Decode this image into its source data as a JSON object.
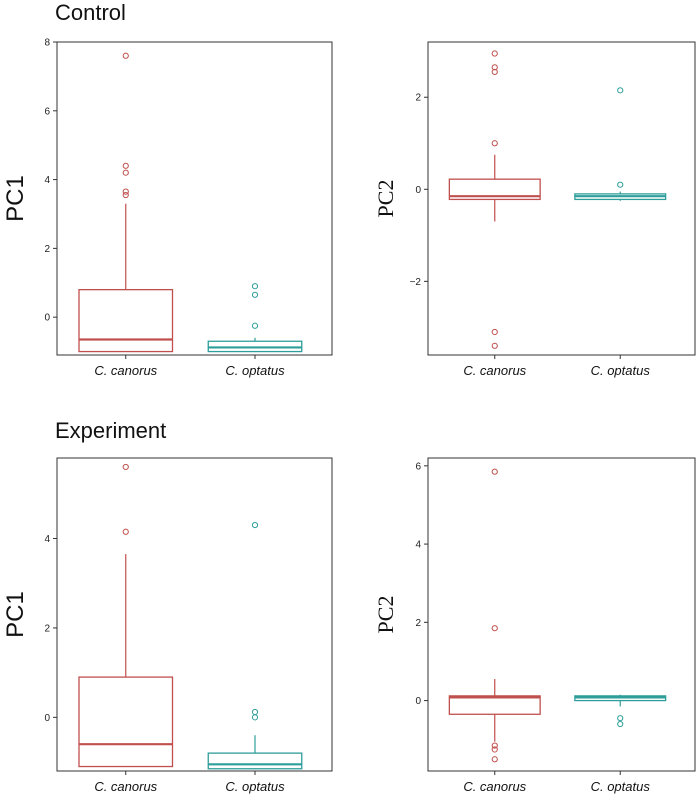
{
  "sections": [
    {
      "title": "Control"
    },
    {
      "title": "Experiment"
    }
  ],
  "colors": {
    "canorus": "#c0504d",
    "optatus": "#2e9e9a"
  },
  "chart_data": [
    {
      "type": "box",
      "section": "Control",
      "ylabel": "PC1",
      "ylim": [
        -1.1,
        8.0
      ],
      "yticks": [
        0,
        2,
        4,
        6,
        8
      ],
      "categories": [
        "C. canorus",
        "C. optatus"
      ],
      "boxes": [
        {
          "category": "C. canorus",
          "whisker_low": -1.0,
          "q1": -1.0,
          "median": -0.65,
          "q3": 0.8,
          "whisker_high": 3.3,
          "outliers": [
            3.55,
            3.65,
            4.2,
            4.4,
            7.6
          ]
        },
        {
          "category": "C. optatus",
          "whisker_low": -1.0,
          "q1": -1.0,
          "median": -0.88,
          "q3": -0.7,
          "whisker_high": -0.6,
          "outliers": [
            -0.25,
            0.65,
            0.9
          ]
        }
      ]
    },
    {
      "type": "box",
      "section": "Control",
      "ylabel": "PC2",
      "ylim": [
        -3.6,
        3.2
      ],
      "yticks": [
        -2,
        0,
        2
      ],
      "categories": [
        "C. canorus",
        "C. optatus"
      ],
      "boxes": [
        {
          "category": "C. canorus",
          "whisker_low": -0.7,
          "q1": -0.22,
          "median": -0.15,
          "q3": 0.22,
          "whisker_high": 0.75,
          "outliers": [
            -3.4,
            -3.1,
            1.0,
            2.55,
            2.65,
            2.95
          ]
        },
        {
          "category": "C. optatus",
          "whisker_low": -0.25,
          "q1": -0.22,
          "median": -0.15,
          "q3": -0.1,
          "whisker_high": -0.05,
          "outliers": [
            0.1,
            2.15
          ]
        }
      ]
    },
    {
      "type": "box",
      "section": "Experiment",
      "ylabel": "PC1",
      "ylim": [
        -1.2,
        5.8
      ],
      "yticks": [
        0,
        2,
        4
      ],
      "categories": [
        "C. canorus",
        "C. optatus"
      ],
      "boxes": [
        {
          "category": "C. canorus",
          "whisker_low": -1.1,
          "q1": -1.1,
          "median": -0.6,
          "q3": 0.9,
          "whisker_high": 3.65,
          "outliers": [
            4.15,
            5.6
          ]
        },
        {
          "category": "C. optatus",
          "whisker_low": -1.15,
          "q1": -1.15,
          "median": -1.05,
          "q3": -0.8,
          "whisker_high": -0.4,
          "outliers": [
            0.0,
            0.12,
            4.3
          ]
        }
      ]
    },
    {
      "type": "box",
      "section": "Experiment",
      "ylabel": "PC2",
      "ylim": [
        -1.8,
        6.2
      ],
      "yticks": [
        0,
        2,
        4,
        6
      ],
      "categories": [
        "C. canorus",
        "C. optatus"
      ],
      "boxes": [
        {
          "category": "C. canorus",
          "whisker_low": -1.05,
          "q1": -0.35,
          "median": 0.08,
          "q3": 0.12,
          "whisker_high": 0.55,
          "outliers": [
            -1.5,
            -1.25,
            -1.15,
            1.85,
            5.85
          ]
        },
        {
          "category": "C. optatus",
          "whisker_low": -0.15,
          "q1": 0.0,
          "median": 0.08,
          "q3": 0.12,
          "whisker_high": 0.15,
          "outliers": [
            -0.6,
            -0.45
          ]
        }
      ]
    }
  ]
}
